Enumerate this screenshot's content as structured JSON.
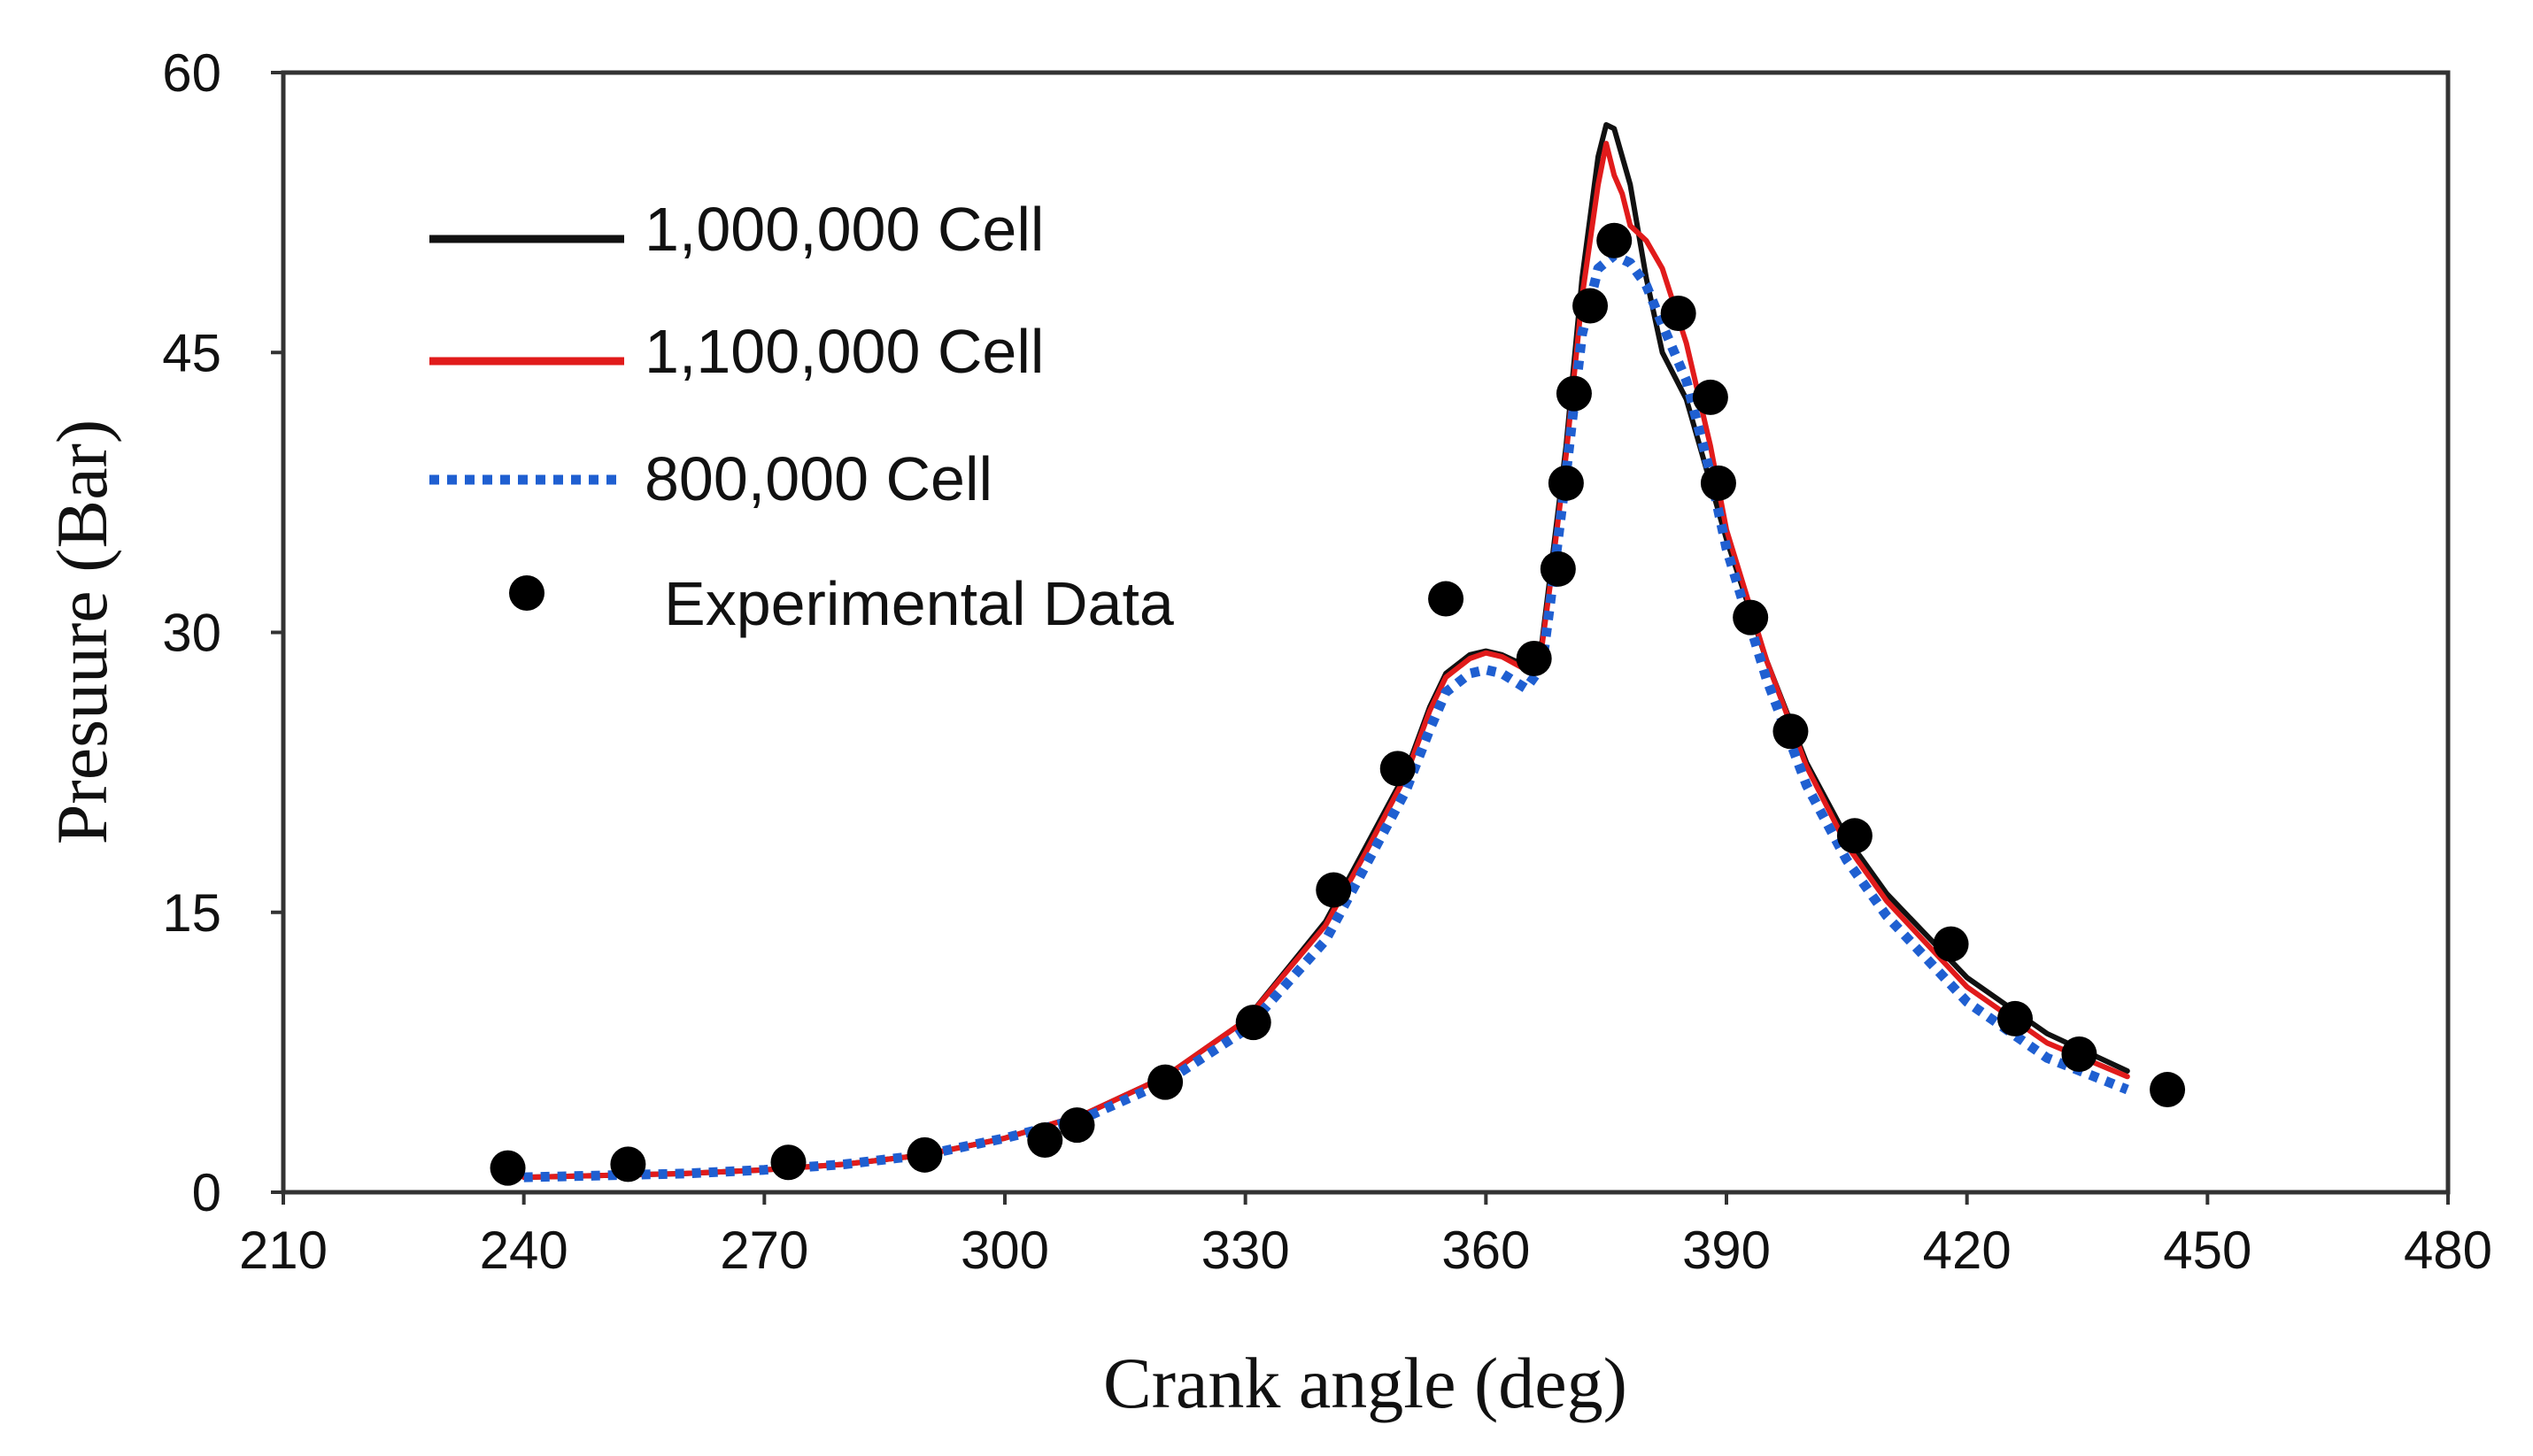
{
  "chart_data": {
    "type": "line",
    "title": "",
    "xlabel": "Crank angle (deg)",
    "ylabel": "Presuure (Bar)",
    "xlim": [
      210,
      480
    ],
    "ylim": [
      0,
      60
    ],
    "xticks": [
      210,
      240,
      270,
      300,
      330,
      360,
      390,
      420,
      450,
      480
    ],
    "yticks": [
      0,
      15,
      30,
      45,
      60
    ],
    "xtick_labels": [
      "210",
      "240",
      "270",
      "300",
      "330",
      "360",
      "390",
      "420",
      "450",
      "480"
    ],
    "ytick_labels": [
      "0",
      "15",
      "30",
      "45",
      "60"
    ],
    "grid": false,
    "legend_position": "top-left",
    "series": [
      {
        "name": "1,000,000 Cell",
        "style": "solid",
        "color": "#111111",
        "x": [
          240,
          250,
          260,
          270,
          280,
          290,
          300,
          310,
          320,
          330,
          340,
          345,
          350,
          353,
          355,
          358,
          360,
          362,
          365,
          367,
          368,
          370,
          372,
          374,
          375,
          376,
          378,
          380,
          382,
          385,
          388,
          390,
          395,
          400,
          405,
          410,
          420,
          430,
          440
        ],
        "y": [
          0.8,
          0.9,
          1.0,
          1.2,
          1.5,
          2.0,
          2.9,
          4.2,
          6.2,
          9.2,
          14.5,
          18.5,
          22.5,
          26.0,
          27.8,
          28.8,
          29.0,
          28.8,
          28.2,
          29.5,
          33.0,
          40.0,
          49.0,
          55.5,
          57.2,
          57.0,
          54.0,
          49.0,
          45.0,
          42.5,
          38.0,
          35.0,
          28.5,
          23.0,
          19.0,
          16.0,
          11.5,
          8.5,
          6.5
        ]
      },
      {
        "name": "1,100,000 Cell",
        "style": "solid",
        "color": "#e11b1b",
        "x": [
          240,
          250,
          260,
          270,
          280,
          290,
          300,
          310,
          320,
          330,
          340,
          345,
          350,
          353,
          355,
          358,
          360,
          362,
          365,
          367,
          368,
          370,
          372,
          374,
          375,
          376,
          377,
          378,
          380,
          382,
          385,
          388,
          390,
          395,
          400,
          405,
          410,
          420,
          430,
          440
        ],
        "y": [
          0.8,
          0.9,
          1.0,
          1.2,
          1.5,
          2.0,
          2.9,
          4.2,
          6.2,
          9.2,
          14.3,
          18.2,
          22.3,
          25.8,
          27.6,
          28.6,
          28.9,
          28.7,
          28.0,
          29.3,
          32.5,
          39.5,
          48.0,
          54.0,
          56.2,
          54.5,
          53.5,
          51.8,
          51.0,
          49.5,
          45.5,
          40.0,
          35.5,
          28.5,
          22.8,
          18.6,
          15.6,
          11.0,
          8.0,
          6.2
        ]
      },
      {
        "name": "800,000 Cell",
        "style": "dotted",
        "color": "#1f5fd1",
        "x": [
          240,
          250,
          260,
          270,
          280,
          290,
          300,
          310,
          320,
          330,
          340,
          345,
          350,
          353,
          355,
          358,
          360,
          362,
          365,
          367,
          368,
          370,
          372,
          374,
          376,
          378,
          380,
          382,
          385,
          388,
          390,
          395,
          400,
          405,
          410,
          420,
          430,
          440
        ],
        "y": [
          0.8,
          0.9,
          1.0,
          1.2,
          1.5,
          2.0,
          2.9,
          4.0,
          5.9,
          8.7,
          13.5,
          17.5,
          21.5,
          24.8,
          26.8,
          27.8,
          28.0,
          27.8,
          27.0,
          28.2,
          31.5,
          38.5,
          46.0,
          49.5,
          50.2,
          49.8,
          48.6,
          46.5,
          43.5,
          38.5,
          34.5,
          27.5,
          21.8,
          17.8,
          14.8,
          10.2,
          7.2,
          5.5
        ]
      },
      {
        "name": "Experimental Data",
        "style": "markers",
        "color": "#000000",
        "x": [
          238,
          253,
          273,
          290,
          305,
          309,
          320,
          331,
          341,
          349,
          355,
          366,
          369,
          370,
          371,
          373,
          376,
          384,
          388,
          389,
          393,
          398,
          406,
          418,
          426,
          434,
          445
        ],
        "y": [
          1.3,
          1.5,
          1.6,
          2.0,
          2.8,
          3.6,
          5.9,
          9.1,
          16.2,
          22.7,
          31.8,
          28.6,
          33.4,
          38.0,
          42.8,
          47.5,
          51.0,
          47.1,
          42.6,
          38.0,
          30.8,
          24.7,
          19.1,
          13.3,
          9.3,
          7.4,
          5.5
        ]
      }
    ]
  }
}
